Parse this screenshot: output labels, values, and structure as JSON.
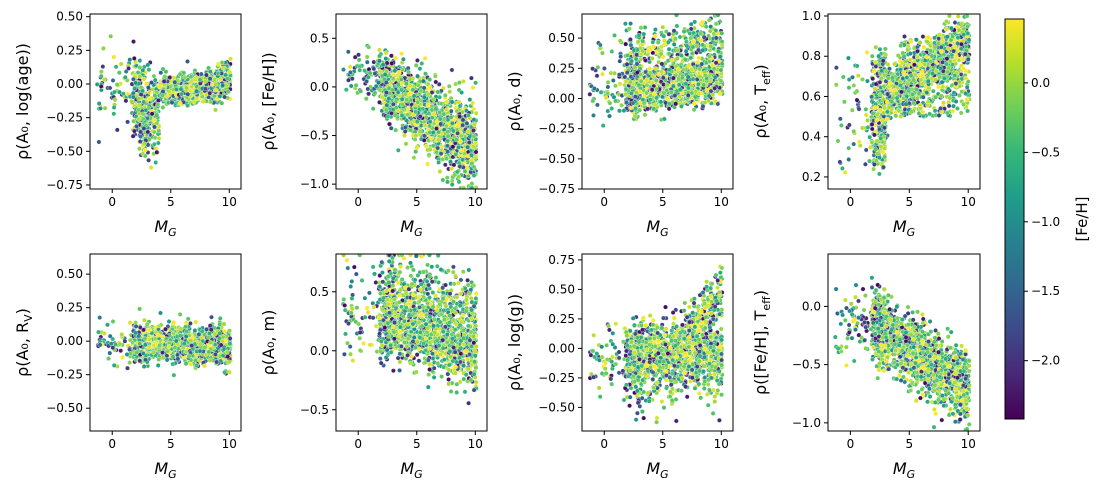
{
  "figure": {
    "colorbar_label": "[Fe/H]",
    "colorbar_ticks": [
      0.0,
      -0.5,
      -1.0,
      -1.5,
      -2.0
    ],
    "colorbar_tick_labels": [
      "0.0",
      "−0.5",
      "−1.0",
      "−1.5",
      "−2.0"
    ],
    "colorbar_range": [
      -2.42,
      0.46
    ],
    "colormap": "viridis"
  },
  "colors": {
    "viridis": [
      "#440154",
      "#482878",
      "#3e4a89",
      "#31688e",
      "#26828e",
      "#1f9e89",
      "#35b779",
      "#6ece58",
      "#b5de2b",
      "#fde725"
    ]
  },
  "chart_data": [
    {
      "type": "scatter",
      "id": "log_age",
      "title": "",
      "xlabel_math": "M",
      "xlabel_sub": "G",
      "ylabel_text": "ρ(A₀, log(age))",
      "xlim": [
        -1.9,
        11.0
      ],
      "ylim": [
        -0.78,
        0.52
      ],
      "xticks": [
        0,
        5,
        10
      ],
      "xtick_labels": [
        "0",
        "5",
        "10"
      ],
      "yticks": [
        0.5,
        0.25,
        0.0,
        -0.25,
        -0.5,
        -0.75
      ],
      "ytick_labels": [
        "0.50",
        "0.25",
        "0.00",
        "−0.25",
        "−0.50",
        "−0.75"
      ]
    },
    {
      "type": "scatter",
      "id": "feh",
      "title": "",
      "xlabel_math": "M",
      "xlabel_sub": "G",
      "ylabel_text": "ρ(A₀, [Fe/H])",
      "xlim": [
        -1.9,
        11.0
      ],
      "ylim": [
        -1.05,
        0.75
      ],
      "xticks": [
        0,
        5,
        10
      ],
      "xtick_labels": [
        "0",
        "5",
        "10"
      ],
      "yticks": [
        0.5,
        0.0,
        -0.5,
        -1.0
      ],
      "ytick_labels": [
        "0.5",
        "0.0",
        "−0.5",
        "−1.0"
      ]
    },
    {
      "type": "scatter",
      "id": "distance",
      "title": "",
      "xlabel_math": "M",
      "xlabel_sub": "G",
      "ylabel_text": "ρ(A₀, d)",
      "xlim": [
        -1.9,
        11.0
      ],
      "ylim": [
        -0.75,
        0.7
      ],
      "xticks": [
        0,
        5,
        10
      ],
      "xtick_labels": [
        "0",
        "5",
        "10"
      ],
      "yticks": [
        0.5,
        0.25,
        0.0,
        -0.25,
        -0.5,
        -0.75
      ],
      "ytick_labels": [
        "0.50",
        "0.25",
        "0.00",
        "−0.25",
        "−0.50",
        "−0.75"
      ]
    },
    {
      "type": "scatter",
      "id": "teff",
      "title": "",
      "xlabel_math": "M",
      "xlabel_sub": "G",
      "ylabel_text": "ρ(A₀, T_eff)",
      "xlim": [
        -1.9,
        11.0
      ],
      "ylim": [
        0.14,
        1.01
      ],
      "xticks": [
        0,
        5,
        10
      ],
      "xtick_labels": [
        "0",
        "5",
        "10"
      ],
      "yticks": [
        1.0,
        0.8,
        0.6,
        0.4,
        0.2
      ],
      "ytick_labels": [
        "1.0",
        "0.8",
        "0.6",
        "0.4",
        "0.2"
      ]
    },
    {
      "type": "scatter",
      "id": "rv",
      "title": "",
      "xlabel_math": "M",
      "xlabel_sub": "G",
      "ylabel_text": "ρ(A₀, R_V)",
      "xlim": [
        -1.9,
        11.0
      ],
      "ylim": [
        -0.67,
        0.65
      ],
      "xticks": [
        0,
        5,
        10
      ],
      "xtick_labels": [
        "0",
        "5",
        "10"
      ],
      "yticks": [
        0.5,
        0.25,
        0.0,
        -0.25,
        -0.5
      ],
      "ytick_labels": [
        "0.50",
        "0.25",
        "0.00",
        "−0.25",
        "−0.50"
      ]
    },
    {
      "type": "scatter",
      "id": "mass",
      "title": "",
      "xlabel_math": "M",
      "xlabel_sub": "G",
      "ylabel_text": "ρ(A₀, m)",
      "xlim": [
        -1.9,
        11.0
      ],
      "ylim": [
        -0.68,
        0.82
      ],
      "xticks": [
        0,
        5,
        10
      ],
      "xtick_labels": [
        "0",
        "5",
        "10"
      ],
      "yticks": [
        0.5,
        0.0,
        -0.5
      ],
      "ytick_labels": [
        "0.5",
        "0.0",
        "−0.5"
      ]
    },
    {
      "type": "scatter",
      "id": "logg",
      "title": "",
      "xlabel_math": "M",
      "xlabel_sub": "G",
      "ylabel_text": "ρ(A₀, log(g))",
      "xlim": [
        -1.9,
        11.0
      ],
      "ylim": [
        -0.7,
        0.8
      ],
      "xticks": [
        0,
        5,
        10
      ],
      "xtick_labels": [
        "0",
        "5",
        "10"
      ],
      "yticks": [
        0.75,
        0.5,
        0.25,
        0.0,
        -0.25,
        -0.5
      ],
      "ytick_labels": [
        "0.75",
        "0.50",
        "0.25",
        "0.00",
        "−0.25",
        "−0.50"
      ]
    },
    {
      "type": "scatter",
      "id": "feh_teff",
      "title": "",
      "xlabel_math": "M",
      "xlabel_sub": "G",
      "ylabel_text": "ρ([Fe/H], T_eff)",
      "xlim": [
        -1.9,
        11.0
      ],
      "ylim": [
        -1.07,
        0.45
      ],
      "xticks": [
        0,
        5,
        10
      ],
      "xtick_labels": [
        "0",
        "5",
        "10"
      ],
      "yticks": [
        0.0,
        -0.5,
        -1.0
      ],
      "ytick_labels": [
        "0.0",
        "−0.5",
        "−1.0"
      ]
    }
  ]
}
